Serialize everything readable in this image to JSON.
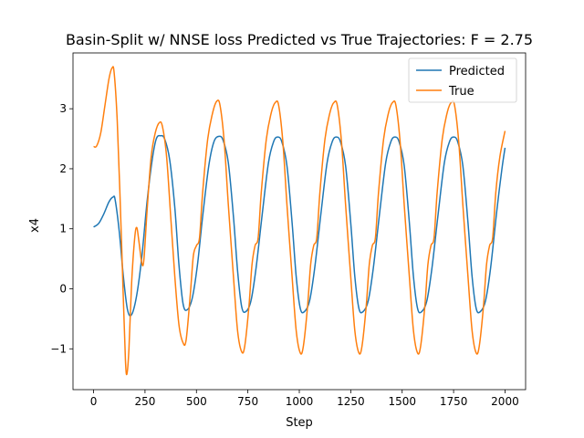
{
  "chart_data": {
    "type": "line",
    "title": "Basin-Split w/ NNSE loss Predicted vs True Trajectories: F = 2.75",
    "xlabel": "Step",
    "ylabel": "x4",
    "xlim": [
      -100,
      2100
    ],
    "ylim": [
      -1.68,
      3.93
    ],
    "xticks": [
      0,
      250,
      500,
      750,
      1000,
      1250,
      1500,
      1750,
      2000
    ],
    "xtick_labels": [
      "0",
      "250",
      "500",
      "750",
      "1000",
      "1250",
      "1500",
      "1750",
      "2000"
    ],
    "yticks": [
      -1,
      0,
      1,
      2,
      3
    ],
    "ytick_labels": [
      "−1",
      "0",
      "1",
      "2",
      "3"
    ],
    "grid": false,
    "legend_position": "top-right",
    "series": [
      {
        "name": "Predicted",
        "color": "#1f77b4",
        "points": [
          [
            0,
            1.03
          ],
          [
            25,
            1.09
          ],
          [
            50,
            1.25
          ],
          [
            75,
            1.45
          ],
          [
            95,
            1.53
          ],
          [
            105,
            1.48
          ],
          [
            125,
            0.95
          ],
          [
            145,
            0.2
          ],
          [
            165,
            -0.35
          ],
          [
            185,
            -0.43
          ],
          [
            210,
            -0.1
          ],
          [
            235,
            0.55
          ],
          [
            260,
            1.45
          ],
          [
            285,
            2.15
          ],
          [
            305,
            2.5
          ],
          [
            325,
            2.55
          ],
          [
            345,
            2.5
          ],
          [
            370,
            2.15
          ],
          [
            395,
            1.35
          ],
          [
            415,
            0.4
          ],
          [
            435,
            -0.25
          ],
          [
            455,
            -0.35
          ],
          [
            480,
            -0.15
          ],
          [
            505,
            0.4
          ],
          [
            530,
            1.2
          ],
          [
            560,
            2.05
          ],
          [
            585,
            2.45
          ],
          [
            610,
            2.54
          ],
          [
            630,
            2.47
          ],
          [
            655,
            2.1
          ],
          [
            680,
            1.2
          ],
          [
            700,
            0.3
          ],
          [
            720,
            -0.3
          ],
          [
            740,
            -0.38
          ],
          [
            765,
            -0.2
          ],
          [
            790,
            0.35
          ],
          [
            820,
            1.25
          ],
          [
            850,
            2.1
          ],
          [
            875,
            2.45
          ],
          [
            895,
            2.53
          ],
          [
            915,
            2.45
          ],
          [
            940,
            2.05
          ],
          [
            965,
            1.1
          ],
          [
            985,
            0.2
          ],
          [
            1005,
            -0.33
          ],
          [
            1025,
            -0.38
          ],
          [
            1050,
            -0.2
          ],
          [
            1075,
            0.35
          ],
          [
            1105,
            1.25
          ],
          [
            1135,
            2.1
          ],
          [
            1160,
            2.45
          ],
          [
            1180,
            2.53
          ],
          [
            1200,
            2.45
          ],
          [
            1225,
            2.05
          ],
          [
            1250,
            1.1
          ],
          [
            1270,
            0.2
          ],
          [
            1290,
            -0.33
          ],
          [
            1310,
            -0.38
          ],
          [
            1335,
            -0.2
          ],
          [
            1360,
            0.35
          ],
          [
            1390,
            1.25
          ],
          [
            1420,
            2.1
          ],
          [
            1445,
            2.45
          ],
          [
            1465,
            2.53
          ],
          [
            1485,
            2.45
          ],
          [
            1510,
            2.05
          ],
          [
            1535,
            1.1
          ],
          [
            1555,
            0.2
          ],
          [
            1575,
            -0.33
          ],
          [
            1595,
            -0.38
          ],
          [
            1620,
            -0.2
          ],
          [
            1645,
            0.35
          ],
          [
            1675,
            1.25
          ],
          [
            1705,
            2.1
          ],
          [
            1730,
            2.45
          ],
          [
            1750,
            2.53
          ],
          [
            1770,
            2.45
          ],
          [
            1795,
            2.05
          ],
          [
            1820,
            1.1
          ],
          [
            1840,
            0.2
          ],
          [
            1860,
            -0.33
          ],
          [
            1880,
            -0.38
          ],
          [
            1905,
            -0.2
          ],
          [
            1930,
            0.35
          ],
          [
            1960,
            1.3
          ],
          [
            1985,
            2.0
          ],
          [
            2000,
            2.35
          ]
        ]
      },
      {
        "name": "True",
        "color": "#ff7f0e",
        "points": [
          [
            0,
            2.37
          ],
          [
            15,
            2.38
          ],
          [
            35,
            2.6
          ],
          [
            55,
            3.05
          ],
          [
            75,
            3.5
          ],
          [
            90,
            3.68
          ],
          [
            100,
            3.6
          ],
          [
            115,
            2.8
          ],
          [
            130,
            1.4
          ],
          [
            145,
            -0.2
          ],
          [
            155,
            -1.2
          ],
          [
            162,
            -1.42
          ],
          [
            172,
            -1.0
          ],
          [
            185,
            0.1
          ],
          [
            200,
            0.85
          ],
          [
            210,
            1.02
          ],
          [
            220,
            0.8
          ],
          [
            235,
            0.42
          ],
          [
            245,
            0.5
          ],
          [
            260,
            1.3
          ],
          [
            280,
            2.2
          ],
          [
            300,
            2.6
          ],
          [
            320,
            2.77
          ],
          [
            335,
            2.7
          ],
          [
            355,
            2.2
          ],
          [
            375,
            1.2
          ],
          [
            395,
            0.2
          ],
          [
            415,
            -0.6
          ],
          [
            435,
            -0.9
          ],
          [
            450,
            -0.85
          ],
          [
            470,
            -0.1
          ],
          [
            485,
            0.55
          ],
          [
            500,
            0.72
          ],
          [
            515,
            0.85
          ],
          [
            530,
            1.6
          ],
          [
            555,
            2.5
          ],
          [
            580,
            2.95
          ],
          [
            600,
            3.13
          ],
          [
            615,
            3.05
          ],
          [
            635,
            2.45
          ],
          [
            655,
            1.4
          ],
          [
            680,
            0.2
          ],
          [
            700,
            -0.7
          ],
          [
            720,
            -1.05
          ],
          [
            735,
            -0.95
          ],
          [
            755,
            -0.3
          ],
          [
            770,
            0.4
          ],
          [
            785,
            0.72
          ],
          [
            800,
            0.85
          ],
          [
            815,
            1.6
          ],
          [
            840,
            2.5
          ],
          [
            865,
            2.95
          ],
          [
            885,
            3.11
          ],
          [
            900,
            3.05
          ],
          [
            920,
            2.45
          ],
          [
            940,
            1.4
          ],
          [
            965,
            0.2
          ],
          [
            985,
            -0.7
          ],
          [
            1005,
            -1.07
          ],
          [
            1020,
            -0.95
          ],
          [
            1040,
            -0.3
          ],
          [
            1055,
            0.4
          ],
          [
            1070,
            0.72
          ],
          [
            1085,
            0.85
          ],
          [
            1100,
            1.6
          ],
          [
            1125,
            2.5
          ],
          [
            1150,
            2.95
          ],
          [
            1170,
            3.11
          ],
          [
            1185,
            3.05
          ],
          [
            1205,
            2.45
          ],
          [
            1225,
            1.4
          ],
          [
            1250,
            0.2
          ],
          [
            1270,
            -0.7
          ],
          [
            1290,
            -1.07
          ],
          [
            1305,
            -0.95
          ],
          [
            1325,
            -0.3
          ],
          [
            1340,
            0.4
          ],
          [
            1355,
            0.72
          ],
          [
            1370,
            0.85
          ],
          [
            1385,
            1.6
          ],
          [
            1410,
            2.5
          ],
          [
            1435,
            2.95
          ],
          [
            1455,
            3.11
          ],
          [
            1470,
            3.05
          ],
          [
            1490,
            2.45
          ],
          [
            1510,
            1.4
          ],
          [
            1535,
            0.2
          ],
          [
            1555,
            -0.7
          ],
          [
            1575,
            -1.07
          ],
          [
            1590,
            -0.95
          ],
          [
            1610,
            -0.3
          ],
          [
            1625,
            0.4
          ],
          [
            1640,
            0.72
          ],
          [
            1655,
            0.85
          ],
          [
            1670,
            1.6
          ],
          [
            1695,
            2.5
          ],
          [
            1720,
            2.95
          ],
          [
            1740,
            3.11
          ],
          [
            1755,
            3.05
          ],
          [
            1775,
            2.45
          ],
          [
            1795,
            1.4
          ],
          [
            1820,
            0.2
          ],
          [
            1840,
            -0.7
          ],
          [
            1860,
            -1.07
          ],
          [
            1875,
            -0.95
          ],
          [
            1895,
            -0.3
          ],
          [
            1910,
            0.4
          ],
          [
            1925,
            0.72
          ],
          [
            1940,
            0.85
          ],
          [
            1955,
            1.6
          ],
          [
            1975,
            2.2
          ],
          [
            2000,
            2.63
          ]
        ]
      }
    ]
  }
}
